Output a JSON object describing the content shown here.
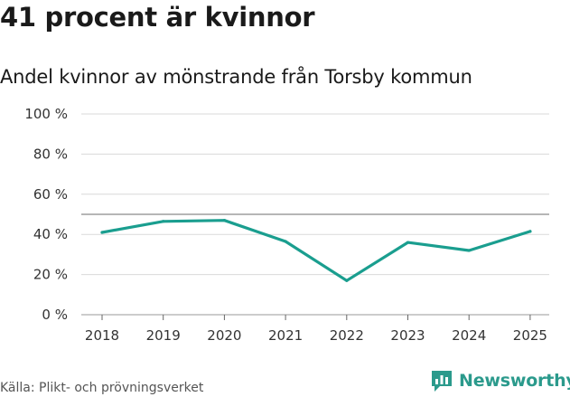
{
  "title": "41 procent är kvinnor",
  "subtitle": "Andel kvinnor av mönstrande från Torsby kommun",
  "source": "Källa: Plikt- och prövningsverket",
  "brand": {
    "name": "Newsworthy",
    "icon": "newsworthy-logo-icon"
  },
  "colors": {
    "line": "#1a9e8f",
    "grid": "#d9d9d9",
    "reference": "#8a8a8a",
    "brand": "#2b9a8c"
  },
  "chart_data": {
    "type": "line",
    "title": "41 procent är kvinnor",
    "subtitle": "Andel kvinnor av mönstrande från Torsby kommun",
    "xlabel": "",
    "ylabel": "",
    "categories": [
      "2018",
      "2019",
      "2020",
      "2021",
      "2022",
      "2023",
      "2024",
      "2025"
    ],
    "series": [
      {
        "name": "Andel kvinnor",
        "values": [
          41,
          46.5,
          47,
          36.5,
          17,
          36,
          32,
          41.5
        ]
      }
    ],
    "ylim": [
      0,
      100
    ],
    "yticks": [
      0,
      20,
      40,
      60,
      80,
      100
    ],
    "ytick_labels": [
      "0 %",
      "20 %",
      "40 %",
      "60 %",
      "80 %",
      "100 %"
    ],
    "reference_line": 50,
    "grid": true
  }
}
